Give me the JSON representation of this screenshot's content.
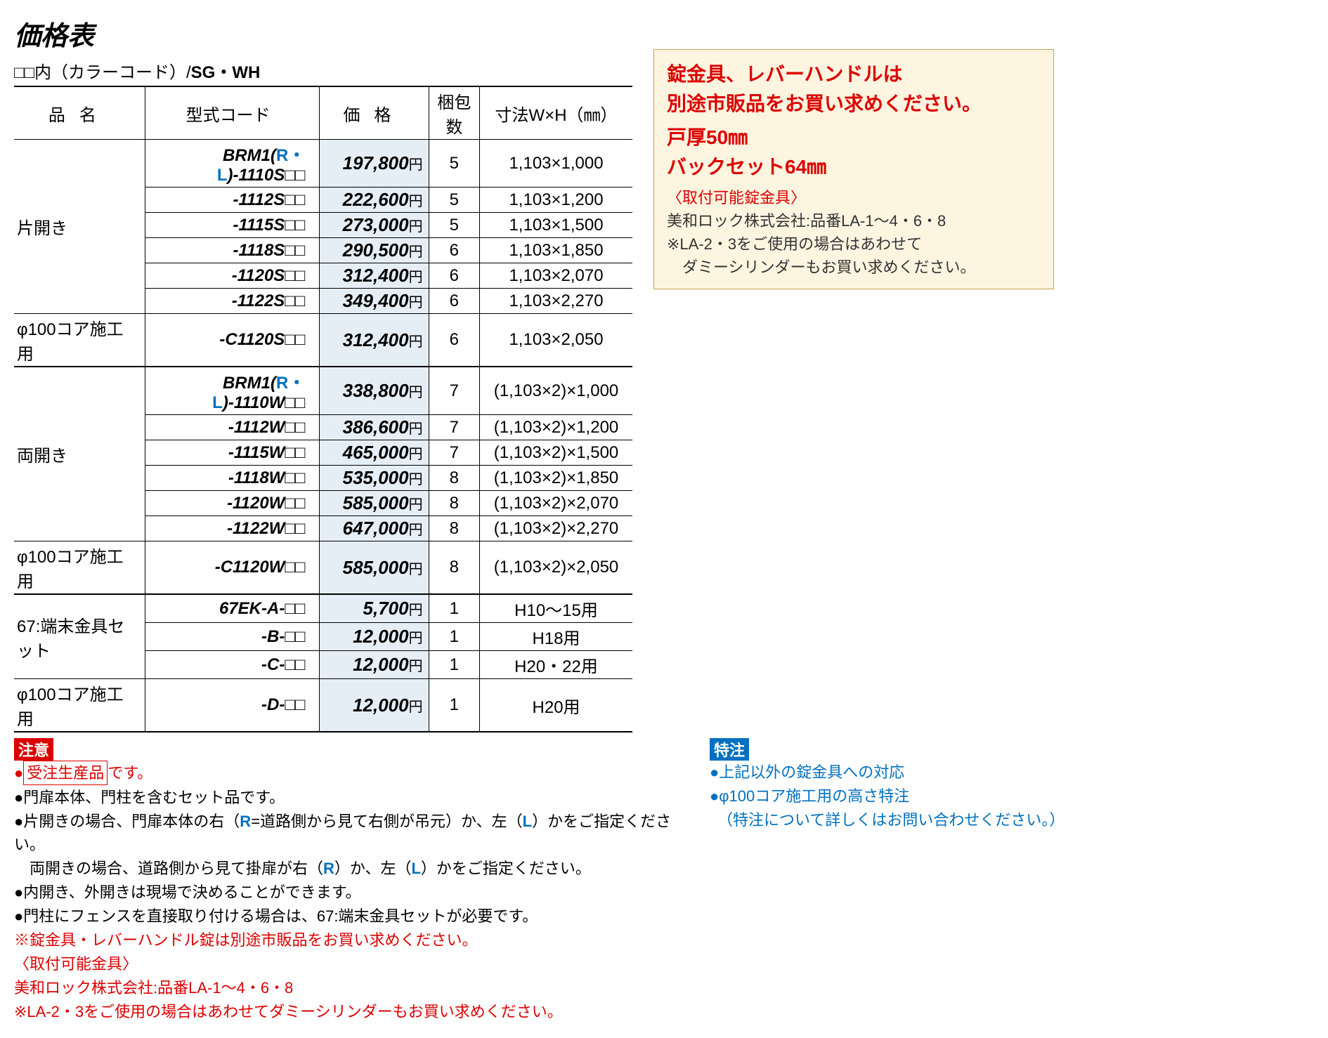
{
  "title": "価格表",
  "subtitle_prefix": "□□内（カラーコード）/",
  "subtitle_bold": "SG・WH",
  "columns": {
    "name": "品名",
    "model": "型式コード",
    "price": "価格",
    "qty": "梱包数",
    "dim": "寸法W×H（㎜）"
  },
  "sections": [
    {
      "name": "片開き",
      "rows": [
        {
          "model_prefix": "BRM1(",
          "model_rl": "R・L",
          "model_suffix": ")-1110S□□",
          "price": "197,800",
          "qty": "5",
          "dim": "1,103×1,000"
        },
        {
          "model_suffix": "-1112S□□",
          "price": "222,600",
          "qty": "5",
          "dim": "1,103×1,200"
        },
        {
          "model_suffix": "-1115S□□",
          "price": "273,000",
          "qty": "5",
          "dim": "1,103×1,500"
        },
        {
          "model_suffix": "-1118S□□",
          "price": "290,500",
          "qty": "6",
          "dim": "1,103×1,850"
        },
        {
          "model_suffix": "-1120S□□",
          "price": "312,400",
          "qty": "6",
          "dim": "1,103×2,070"
        },
        {
          "model_suffix": "-1122S□□",
          "price": "349,400",
          "qty": "6",
          "dim": "1,103×2,270"
        }
      ]
    },
    {
      "name": "φ100コア施工用",
      "rows": [
        {
          "model_suffix": "-C1120S□□",
          "price": "312,400",
          "qty": "6",
          "dim": "1,103×2,050"
        }
      ]
    },
    {
      "name": "両開き",
      "rows": [
        {
          "model_prefix": "BRM1(",
          "model_rl": "R・L",
          "model_suffix": ")-1110W□□",
          "price": "338,800",
          "qty": "7",
          "dim": "(1,103×2)×1,000"
        },
        {
          "model_suffix": "-1112W□□",
          "price": "386,600",
          "qty": "7",
          "dim": "(1,103×2)×1,200"
        },
        {
          "model_suffix": "-1115W□□",
          "price": "465,000",
          "qty": "7",
          "dim": "(1,103×2)×1,500"
        },
        {
          "model_suffix": "-1118W□□",
          "price": "535,000",
          "qty": "8",
          "dim": "(1,103×2)×1,850"
        },
        {
          "model_suffix": "-1120W□□",
          "price": "585,000",
          "qty": "8",
          "dim": "(1,103×2)×2,070"
        },
        {
          "model_suffix": "-1122W□□",
          "price": "647,000",
          "qty": "8",
          "dim": "(1,103×2)×2,270"
        }
      ]
    },
    {
      "name": "φ100コア施工用",
      "rows": [
        {
          "model_suffix": "-C1120W□□",
          "price": "585,000",
          "qty": "8",
          "dim": "(1,103×2)×2,050"
        }
      ]
    },
    {
      "name": "67:端末金具セット",
      "rows": [
        {
          "model_prefix": "67EK-A-",
          "model_suffix": "□□",
          "price": "5,700",
          "qty": "1",
          "dim": "H10～15用"
        },
        {
          "model_suffix": "-B-□□",
          "price": "12,000",
          "qty": "1",
          "dim": "H18用"
        },
        {
          "model_suffix": "-C-□□",
          "price": "12,000",
          "qty": "1",
          "dim": "H20・22用"
        }
      ]
    },
    {
      "name": "φ100コア施工用",
      "rows": [
        {
          "model_suffix": "-D-□□",
          "price": "12,000",
          "qty": "1",
          "dim": "H20用"
        }
      ]
    }
  ],
  "section_thick_borders": [
    2,
    4
  ],
  "callout": {
    "line1": "錠金具、レバーハンドルは",
    "line2": "別途市販品をお買い求めください。",
    "line3": "戸厚50㎜",
    "line4": "バックセット64㎜",
    "sub1": "〈取付可能錠金具〉",
    "detail1": "美和ロック株式会社:品番LA-1～4・6・8",
    "detail2": "※LA-2・3をご使用の場合はあわせて",
    "detail3": "　ダミーシリンダーもお買い求めください。"
  },
  "notice": {
    "badge": "注意",
    "items": [
      {
        "text_pre": "●",
        "box": "受注生産品",
        "text_post": "です。",
        "red": true
      },
      {
        "text": "●門扉本体、門柱を含むセット品です。"
      },
      {
        "html": "●片開きの場合、門扉本体の右（<b class='blue'>R</b>=道路側から見て右側が吊元）か、左（<b class='blue'>L</b>）かをご指定ください。"
      },
      {
        "html": "　両開きの場合、道路側から見て掛扉が右（<b class='blue'>R</b>）か、左（<b class='blue'>L</b>）かをご指定ください。"
      },
      {
        "text": "●内開き、外開きは現場で決めることができます。"
      },
      {
        "text": "●門柱にフェンスを直接取り付ける場合は、67:端末金具セットが必要です。"
      },
      {
        "text": "※錠金具・レバーハンドル錠は別途市販品をお買い求めください。",
        "red": true
      },
      {
        "text": "〈取付可能金具〉",
        "red": true
      },
      {
        "text": "美和ロック株式会社:品番LA-1～4・6・8",
        "red": true
      },
      {
        "text": "※LA-2・3をご使用の場合はあわせてダミーシリンダーもお買い求めください。",
        "red": true
      }
    ]
  },
  "special": {
    "badge": "特注",
    "items": [
      "●上記以外の錠金具への対応",
      "●φ100コア施工用の高さ特注",
      "　（特注について詳しくはお問い合わせください。）"
    ]
  },
  "yen": "円",
  "colors": {
    "red": "#d00",
    "blue": "#0070c0",
    "price_bg": "#e5eef5",
    "callout_bg": "#fdf5e0",
    "callout_border": "#c8a050"
  }
}
